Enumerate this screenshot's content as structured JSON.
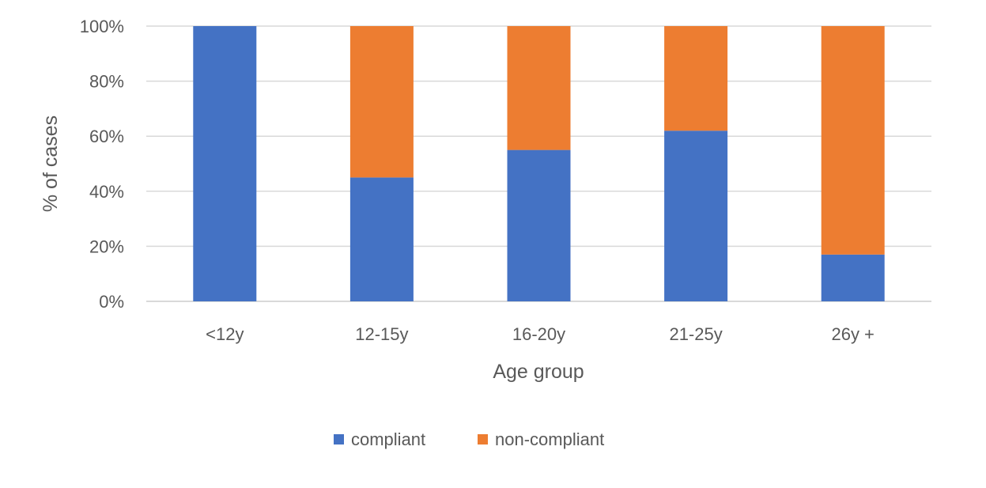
{
  "chart_data": {
    "type": "bar",
    "stacked": true,
    "categories": [
      "<12y",
      "12-15y",
      "16-20y",
      "21-25y",
      "26y +"
    ],
    "series": [
      {
        "name": "compliant",
        "values": [
          100,
          45,
          55,
          62,
          17
        ],
        "color": "#4472c4"
      },
      {
        "name": "non-compliant",
        "values": [
          0,
          55,
          45,
          38,
          83
        ],
        "color": "#ed7d31"
      }
    ],
    "xlabel": "Age group",
    "ylabel": "% of cases",
    "ylim": [
      0,
      100
    ],
    "yticks": [
      "0%",
      "20%",
      "40%",
      "60%",
      "80%",
      "100%"
    ],
    "ytick_values": [
      0,
      20,
      40,
      60,
      80,
      100
    ],
    "grid": true,
    "legend_position": "bottom"
  }
}
